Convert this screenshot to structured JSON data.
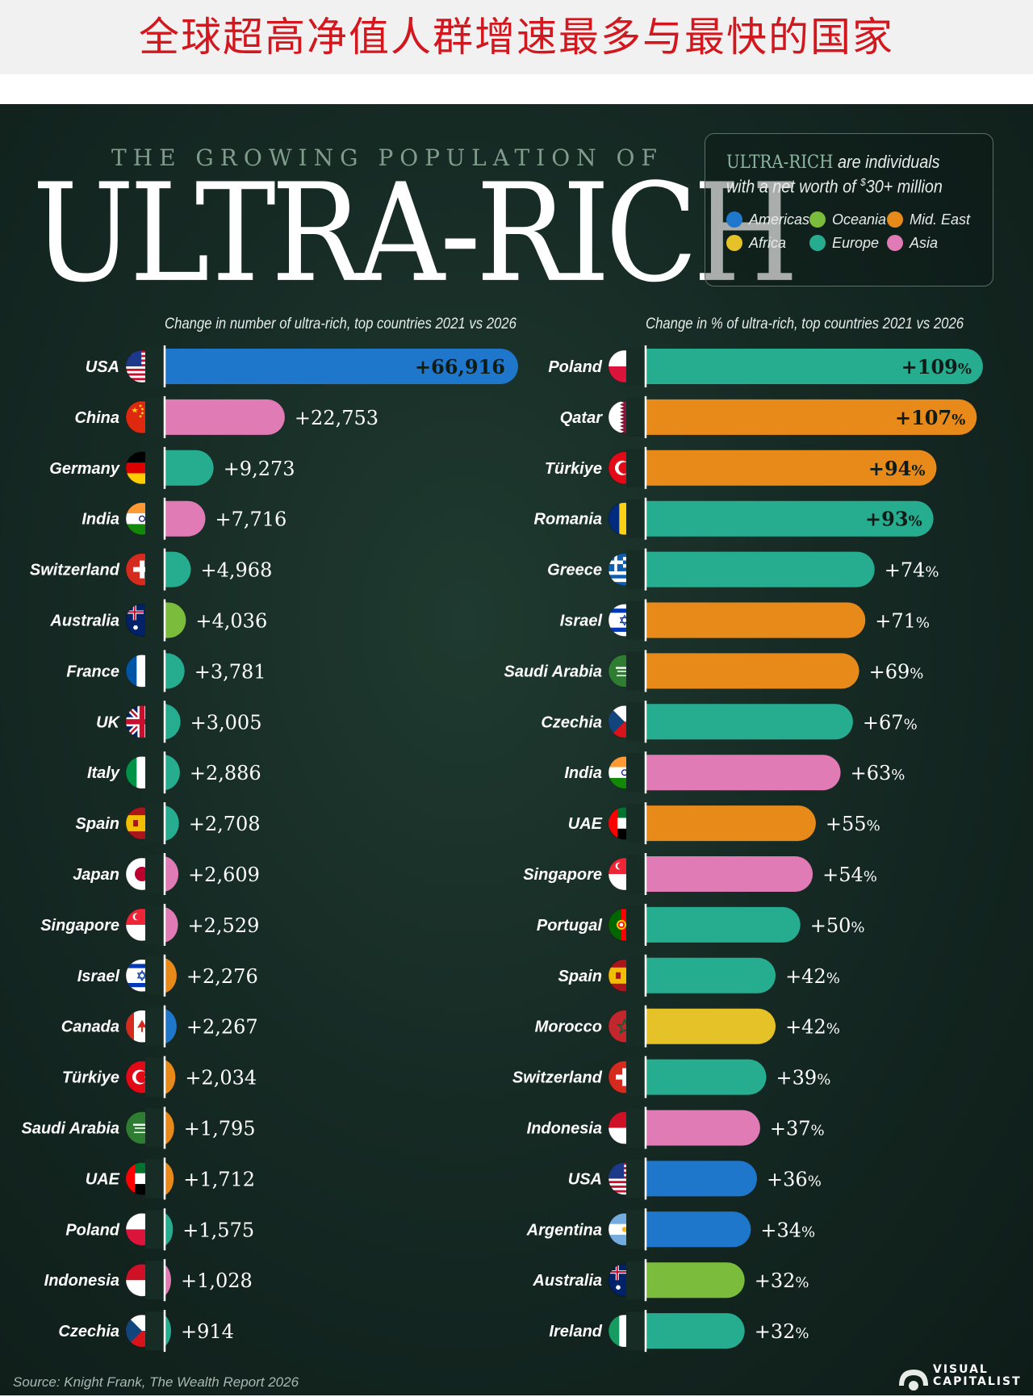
{
  "header": {
    "cn_title": "全球超高净值人群增速最多与最快的国家"
  },
  "poster": {
    "kicker": "THE GROWING POPULATION OF",
    "title": "ULTRA-RICH",
    "definition_highlight": "ULTRA-RICH",
    "definition_rest": " are individuals",
    "definition_line2_a": "with a net worth of ",
    "definition_currency": "$",
    "definition_line2_b": "30+ million",
    "source": "Source: Knight Frank, The Wealth Report 2026",
    "brand": "VISUAL\nCAPITALIST"
  },
  "legend": [
    {
      "name": "Americas",
      "color": "#1f77cc"
    },
    {
      "name": "Oceania",
      "color": "#7cbc3c"
    },
    {
      "name": "Mid. East",
      "color": "#e88a1a"
    },
    {
      "name": "Africa",
      "color": "#e6c229"
    },
    {
      "name": "Europe",
      "color": "#26ad8f"
    },
    {
      "name": "Asia",
      "color": "#e07bb5"
    }
  ],
  "chart_data": [
    {
      "type": "bar",
      "orientation": "horizontal",
      "title": "Change in number of ultra-rich, top countries 2021 vs 2026",
      "value_prefix": "+",
      "categories": [
        "USA",
        "China",
        "Germany",
        "India",
        "Switzerland",
        "Australia",
        "France",
        "UK",
        "Italy",
        "Spain",
        "Japan",
        "Singapore",
        "Israel",
        "Canada",
        "Türkiye",
        "Saudi Arabia",
        "UAE",
        "Poland",
        "Indonesia",
        "Czechia"
      ],
      "values": [
        66916,
        22753,
        9273,
        7716,
        4968,
        4036,
        3781,
        3005,
        2886,
        2708,
        2609,
        2529,
        2276,
        2267,
        2034,
        1795,
        1712,
        1575,
        1028,
        914
      ],
      "labels": [
        "+66,916",
        "+22,753",
        "+9,273",
        "+7,716",
        "+4,968",
        "+4,036",
        "+3,781",
        "+3,005",
        "+2,886",
        "+2,708",
        "+2,609",
        "+2,529",
        "+2,276",
        "+2,267",
        "+2,034",
        "+1,795",
        "+1,712",
        "+1,575",
        "+1,028",
        "+914"
      ],
      "regions": [
        "Americas",
        "Asia",
        "Europe",
        "Asia",
        "Europe",
        "Oceania",
        "Europe",
        "Europe",
        "Europe",
        "Europe",
        "Asia",
        "Asia",
        "Mid. East",
        "Americas",
        "Mid. East",
        "Mid. East",
        "Mid. East",
        "Europe",
        "Asia",
        "Europe"
      ],
      "flags": [
        "usa",
        "china",
        "germany",
        "india",
        "switzerland",
        "australia",
        "france",
        "uk",
        "italy",
        "spain",
        "japan",
        "singapore",
        "israel",
        "canada",
        "turkiye",
        "saudi",
        "uae",
        "poland",
        "indonesia",
        "czechia"
      ]
    },
    {
      "type": "bar",
      "orientation": "horizontal",
      "title": "Change in % of ultra-rich, top countries 2021 vs 2026",
      "value_prefix": "+",
      "value_suffix": "%",
      "categories": [
        "Poland",
        "Qatar",
        "Türkiye",
        "Romania",
        "Greece",
        "Israel",
        "Saudi Arabia",
        "Czechia",
        "India",
        "UAE",
        "Singapore",
        "Portugal",
        "Spain",
        "Morocco",
        "Switzerland",
        "Indonesia",
        "USA",
        "Argentina",
        "Australia",
        "Ireland"
      ],
      "values": [
        109,
        107,
        94,
        93,
        74,
        71,
        69,
        67,
        63,
        55,
        54,
        50,
        42,
        42,
        39,
        37,
        36,
        34,
        32,
        32
      ],
      "regions": [
        "Europe",
        "Mid. East",
        "Mid. East",
        "Europe",
        "Europe",
        "Mid. East",
        "Mid. East",
        "Europe",
        "Asia",
        "Mid. East",
        "Asia",
        "Europe",
        "Europe",
        "Africa",
        "Europe",
        "Asia",
        "Americas",
        "Americas",
        "Oceania",
        "Europe"
      ],
      "flags": [
        "poland",
        "qatar",
        "turkiye",
        "romania",
        "greece",
        "israel",
        "saudi",
        "czechia",
        "india",
        "uae",
        "singapore",
        "portugal",
        "spain",
        "morocco",
        "switzerland",
        "indonesia",
        "usa",
        "argentina",
        "australia",
        "ireland"
      ]
    }
  ]
}
